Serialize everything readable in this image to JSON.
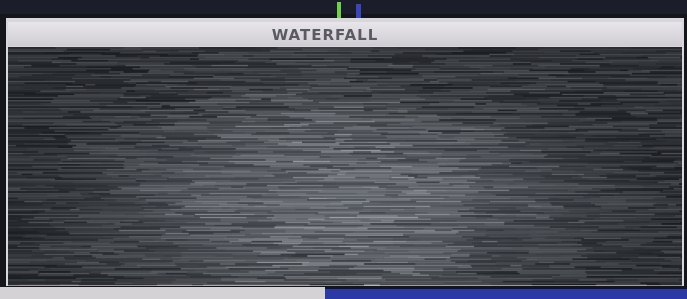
{
  "panel": {
    "title": "WATERFALL"
  }
}
